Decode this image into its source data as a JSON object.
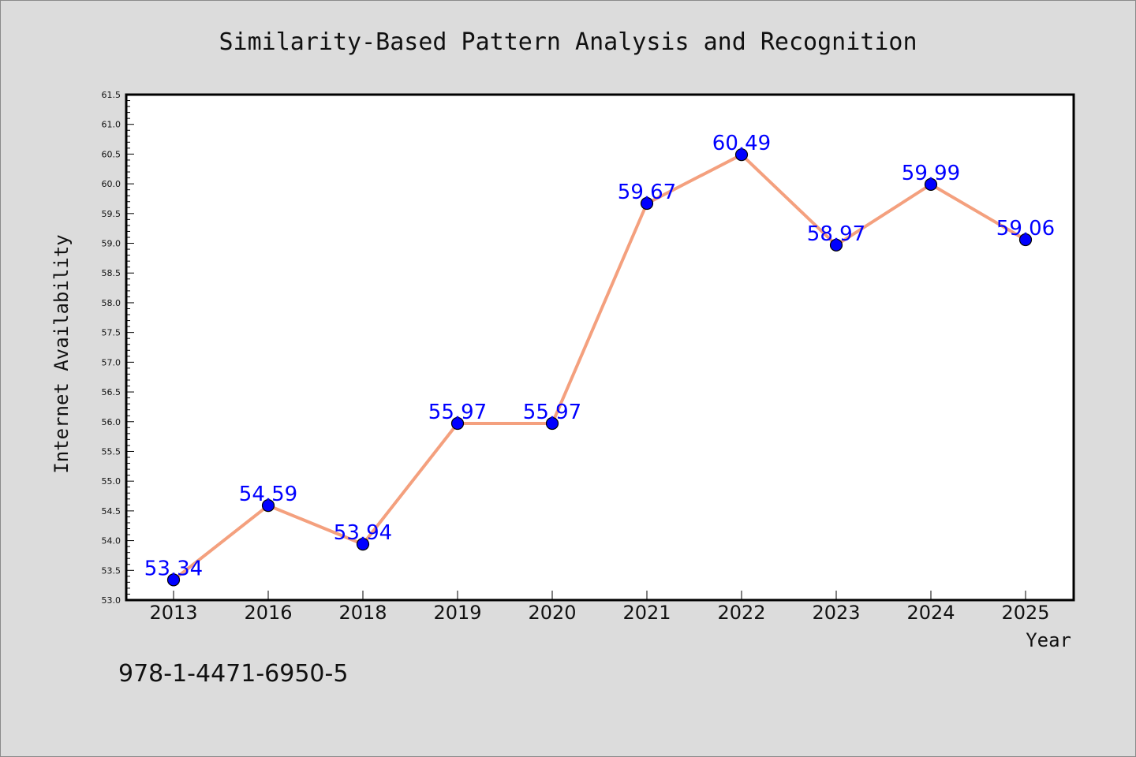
{
  "chart_data": {
    "type": "line",
    "title": "Similarity-Based Pattern Analysis and Recognition",
    "xlabel": "Year",
    "ylabel": "Internet Availability",
    "categories": [
      "2013",
      "2016",
      "2018",
      "2019",
      "2020",
      "2021",
      "2022",
      "2023",
      "2024",
      "2025"
    ],
    "values": [
      53.34,
      54.59,
      53.94,
      55.97,
      55.97,
      59.67,
      60.49,
      58.97,
      59.99,
      59.06
    ],
    "data_labels": [
      "53.34",
      "54.59",
      "53.94",
      "55.97",
      "55.97",
      "59.67",
      "60.49",
      "58.97",
      "59.99",
      "59.06"
    ],
    "ylim": [
      53.0,
      61.5
    ],
    "yticks": [
      "53.0",
      "53.5",
      "54.0",
      "54.5",
      "55.0",
      "55.5",
      "56.0",
      "56.5",
      "57.0",
      "57.5",
      "58.0",
      "58.5",
      "59.0",
      "59.5",
      "60.0",
      "60.5",
      "61.0",
      "61.5"
    ],
    "grid": false,
    "legend": "none",
    "line_color": "#f4a07e",
    "marker_color": "#0000ff",
    "label_color": "#0000ff"
  },
  "footer": {
    "isbn": "978-1-4471-6950-5"
  }
}
